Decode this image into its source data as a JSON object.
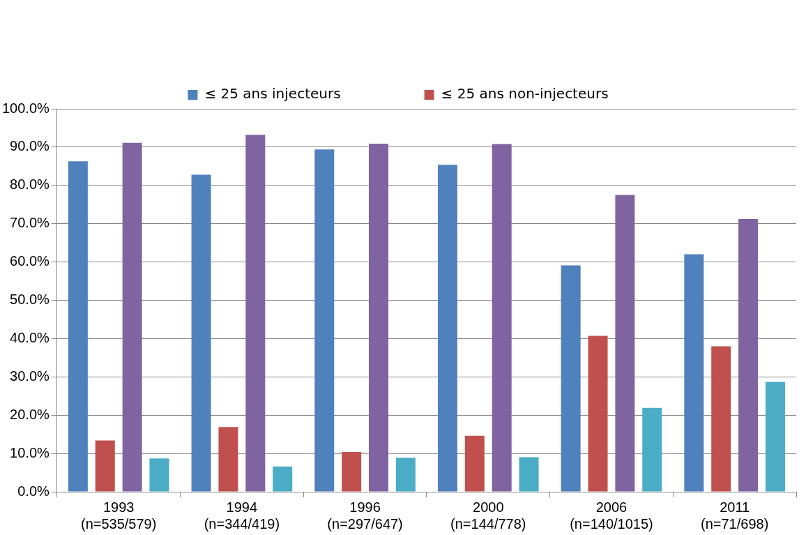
{
  "chart_data": {
    "type": "bar",
    "categories": [
      "1993\n(n=535/579)",
      "1994\n(n=344/419)",
      "1996\n(n=297/647)",
      "2000\n(n=144/778)",
      "2006\n(n=140/1015)",
      "2011\n(n=71/698)"
    ],
    "series": [
      {
        "name": "≤ 25 ans injecteurs",
        "color": "#4f81bd",
        "values": [
          86.3,
          82.8,
          89.4,
          85.4,
          59.1,
          62.0
        ]
      },
      {
        "name": "≤ 25 ans non-injecteurs",
        "color": "#c0504d",
        "values": [
          13.4,
          16.9,
          10.4,
          14.6,
          40.7,
          38.0
        ]
      },
      {
        "color": "#8064a2",
        "values": [
          91.1,
          93.2,
          90.9,
          90.8,
          77.5,
          71.2
        ]
      },
      {
        "color": "#4bacc6",
        "values": [
          8.7,
          6.6,
          8.9,
          9.0,
          21.9,
          28.7
        ]
      }
    ],
    "ylim": [
      0,
      100
    ],
    "yticks": [
      {
        "value": 0,
        "label": "0.0%"
      },
      {
        "value": 10,
        "label": "10.0%"
      },
      {
        "value": 20,
        "label": "20.0%"
      },
      {
        "value": 30,
        "label": "30.0%"
      },
      {
        "value": 40,
        "label": "40.0%"
      },
      {
        "value": 50,
        "label": "50.0%"
      },
      {
        "value": 60,
        "label": "60.0%"
      },
      {
        "value": 70,
        "label": "70.0%"
      },
      {
        "value": 80,
        "label": "80.0%"
      },
      {
        "value": 90,
        "label": "90.0%"
      },
      {
        "value": 100,
        "label": "100.0%"
      }
    ],
    "grid": "y",
    "legend": "top"
  }
}
